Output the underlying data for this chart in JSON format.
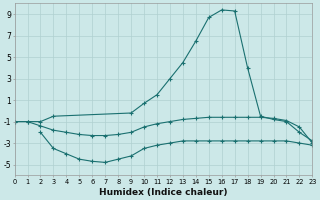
{
  "xlabel": "Humidex (Indice chaleur)",
  "bg_color": "#cce8e8",
  "grid_color": "#b0d0d0",
  "line_color": "#1a7070",
  "xlim": [
    0,
    23
  ],
  "ylim": [
    -6,
    10
  ],
  "x_upper": [
    0,
    1,
    2,
    3,
    9,
    10,
    11,
    12,
    13,
    14,
    15,
    16,
    17,
    18,
    19,
    20,
    21,
    22,
    23
  ],
  "y_upper": [
    -1.0,
    -1.0,
    -1.0,
    -0.5,
    -0.2,
    0.7,
    1.5,
    3.0,
    4.5,
    6.5,
    8.7,
    9.4,
    9.3,
    4.0,
    -0.5,
    -0.8,
    -1.0,
    -2.0,
    -2.8
  ],
  "x_middle": [
    0,
    1,
    2,
    3,
    4,
    5,
    6,
    7,
    8,
    9,
    10,
    11,
    12,
    13,
    14,
    15,
    16,
    17,
    18,
    19,
    20,
    21,
    22,
    23
  ],
  "y_middle": [
    -1.0,
    -1.0,
    -1.4,
    -1.8,
    -2.0,
    -2.2,
    -2.3,
    -2.3,
    -2.2,
    -2.0,
    -1.5,
    -1.2,
    -1.0,
    -0.8,
    -0.7,
    -0.6,
    -0.6,
    -0.6,
    -0.6,
    -0.6,
    -0.7,
    -0.9,
    -1.5,
    -3.0
  ],
  "x_lower": [
    2,
    3,
    4,
    5,
    6,
    7,
    8,
    9,
    10,
    11,
    12,
    13,
    14,
    15,
    16,
    17,
    18,
    19,
    20,
    21,
    22,
    23
  ],
  "y_lower": [
    -2.0,
    -3.5,
    -4.0,
    -4.5,
    -4.7,
    -4.8,
    -4.5,
    -4.2,
    -3.5,
    -3.2,
    -3.0,
    -2.8,
    -2.8,
    -2.8,
    -2.8,
    -2.8,
    -2.8,
    -2.8,
    -2.8,
    -2.8,
    -3.0,
    -3.2
  ],
  "yticks": [
    -5,
    -3,
    -1,
    1,
    3,
    5,
    7,
    9
  ],
  "xticks": [
    0,
    1,
    2,
    3,
    4,
    5,
    6,
    7,
    8,
    9,
    10,
    11,
    12,
    13,
    14,
    15,
    16,
    17,
    18,
    19,
    20,
    21,
    22,
    23
  ]
}
